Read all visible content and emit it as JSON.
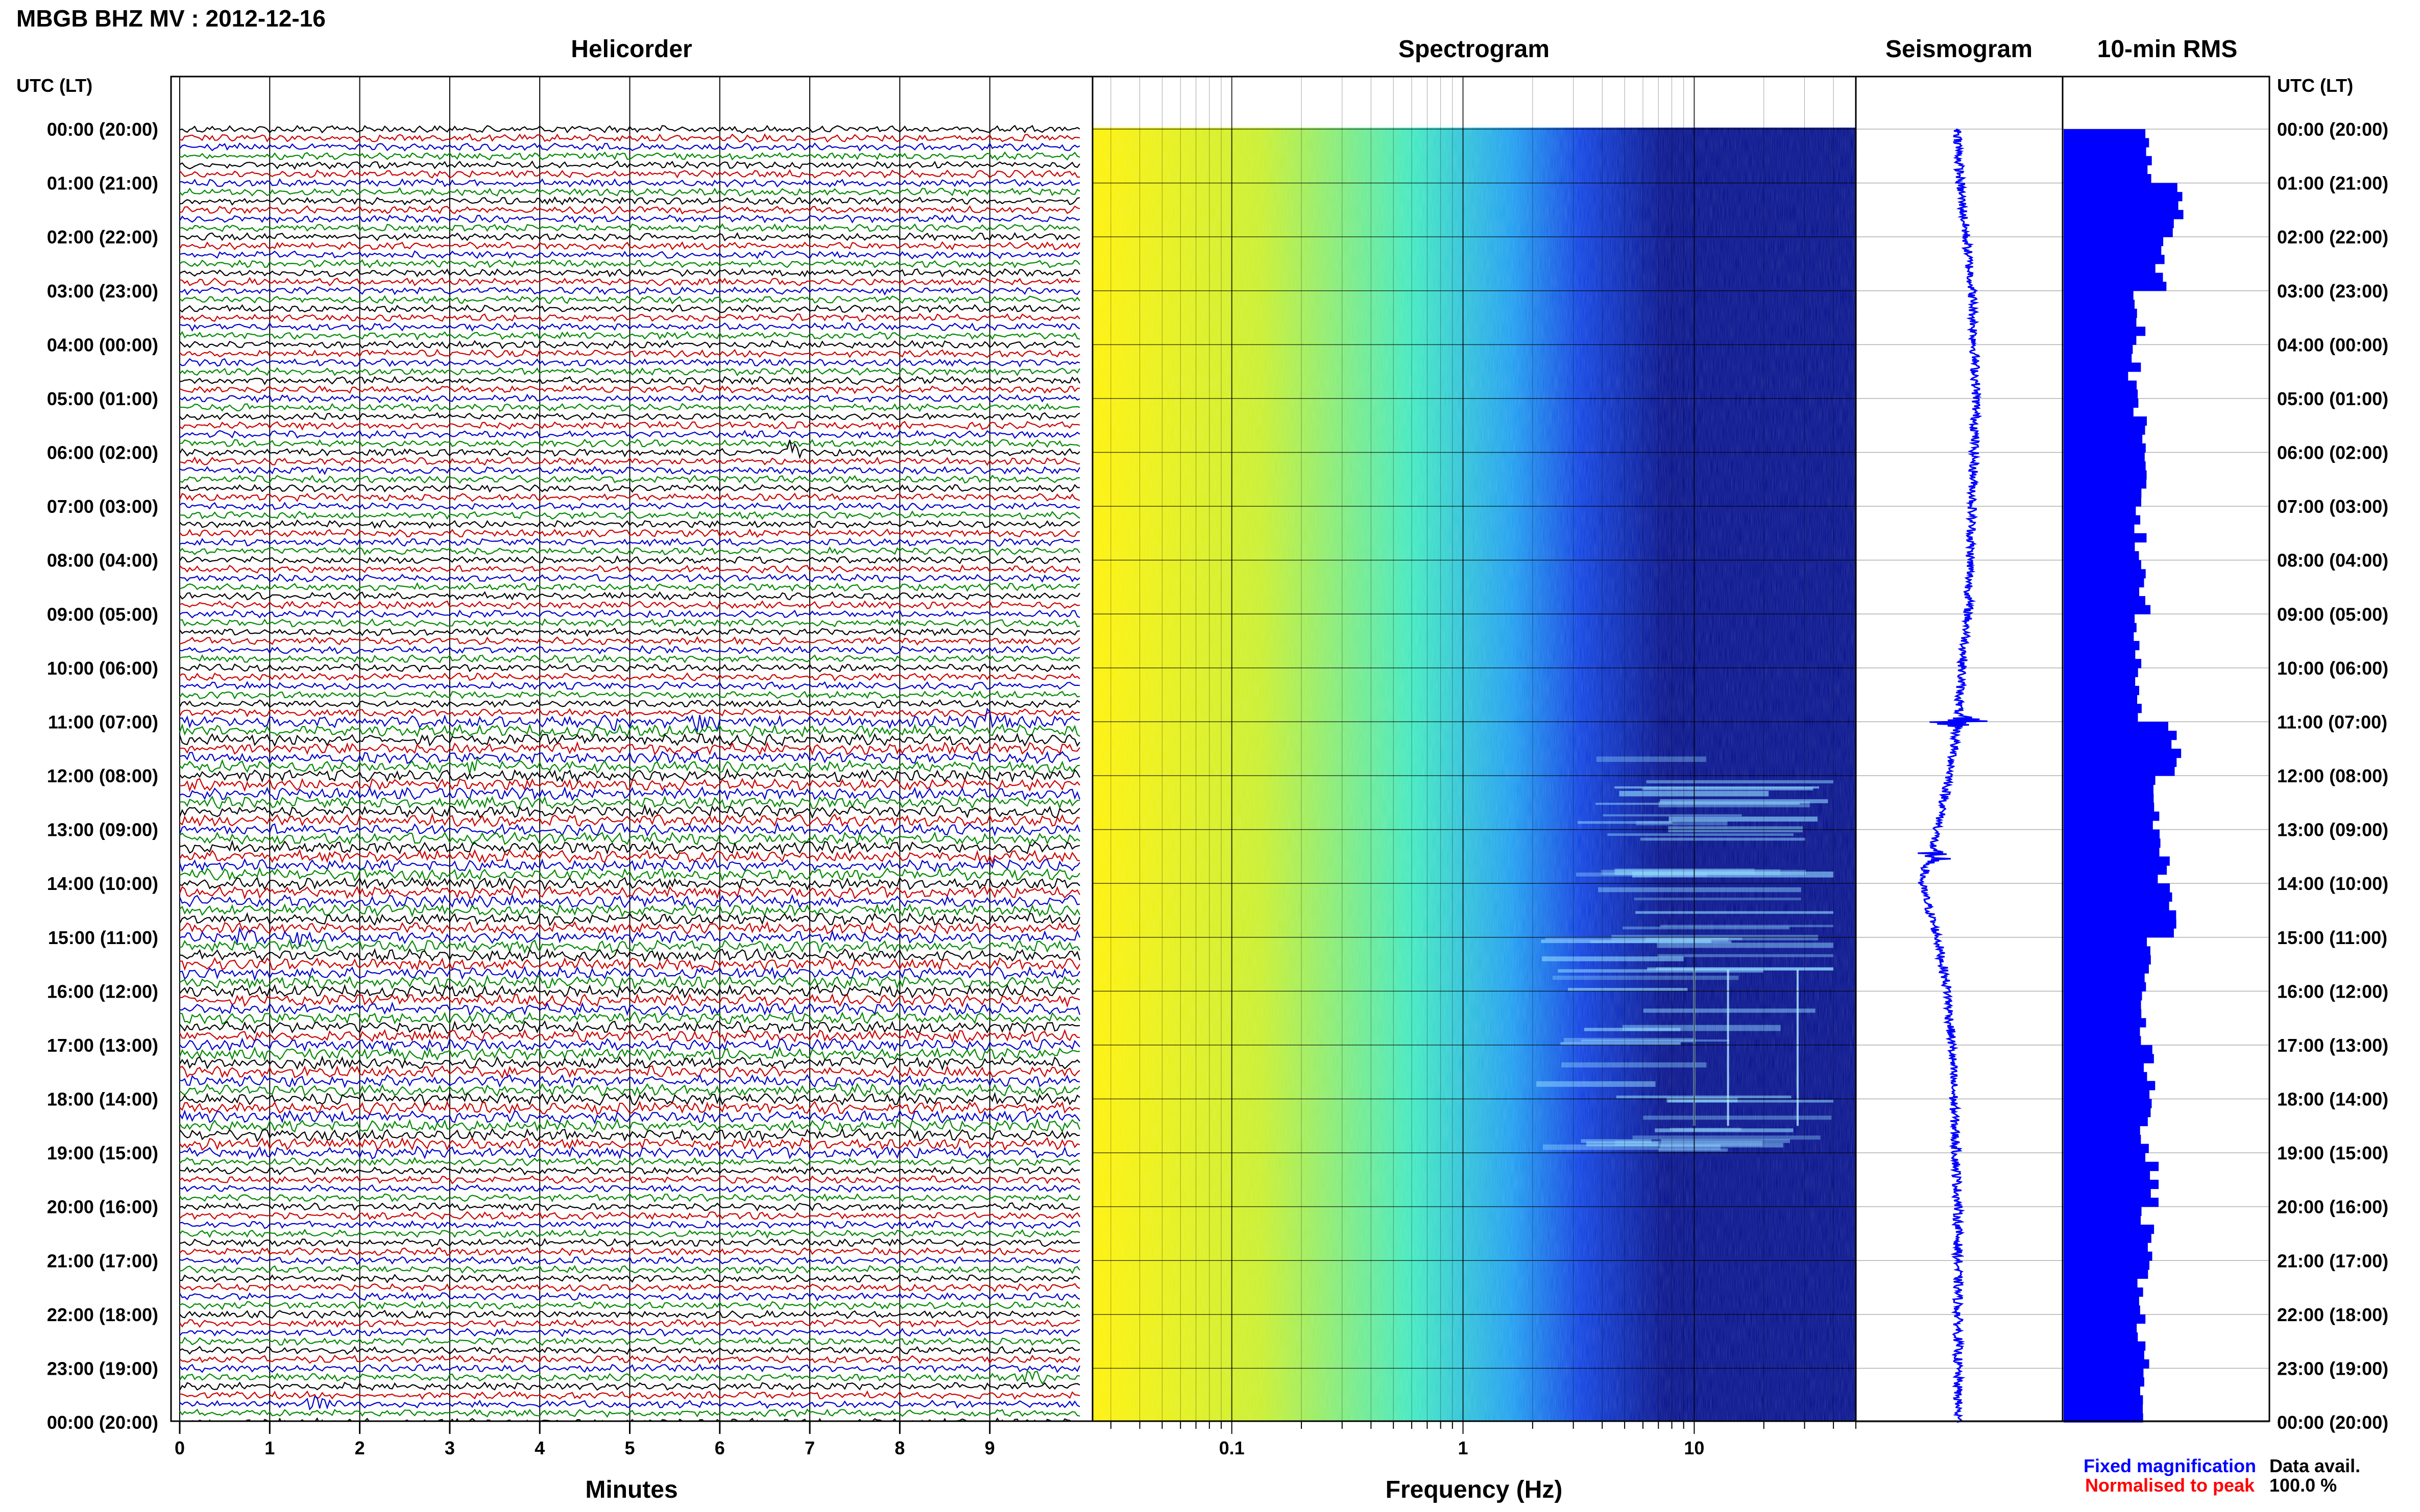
{
  "chart_data": {
    "type": "helicorder-spectrogram",
    "title": "MBGB BHZ MV : 2012-12-16",
    "time_axis_header": "UTC (LT)",
    "time_labels": [
      "00:00 (20:00)",
      "01:00 (21:00)",
      "02:00 (22:00)",
      "03:00 (23:00)",
      "04:00 (00:00)",
      "05:00 (01:00)",
      "06:00 (02:00)",
      "07:00 (03:00)",
      "08:00 (04:00)",
      "09:00 (05:00)",
      "10:00 (06:00)",
      "11:00 (07:00)",
      "12:00 (08:00)",
      "13:00 (09:00)",
      "14:00 (10:00)",
      "15:00 (11:00)",
      "16:00 (12:00)",
      "17:00 (13:00)",
      "18:00 (14:00)",
      "19:00 (15:00)",
      "20:00 (16:00)",
      "21:00 (17:00)",
      "22:00 (18:00)",
      "23:00 (19:00)",
      "00:00 (20:00)"
    ],
    "traces_per_hour": 6,
    "panels": {
      "helicorder": {
        "title": "Helicorder",
        "xlabel": "Minutes",
        "xticks": [
          0,
          1,
          2,
          3,
          4,
          5,
          6,
          7,
          8,
          9
        ],
        "xlim": [
          0,
          10
        ],
        "trace_colors": [
          "#000000",
          "#cc0000",
          "#0000cc",
          "#008800"
        ],
        "events": [
          {
            "hour": 6.0,
            "minute": 6.8,
            "color": "#000000"
          },
          {
            "hour": 11.0,
            "minute": 9.0,
            "color": "#0000cc"
          },
          {
            "hour": 11.0,
            "minute": 4.8,
            "color": "#008800"
          },
          {
            "hour": 11.0,
            "minute": 5.8,
            "color": "#008800"
          },
          {
            "hour": 11.83,
            "minute": 3.3,
            "color": "#008800"
          },
          {
            "hour": 13.5,
            "minute": 9.0,
            "color": "#cc0000"
          },
          {
            "hour": 15.0,
            "minute": 0.8,
            "color": "#008800"
          },
          {
            "hour": 15.0,
            "minute": 1.3,
            "color": "#008800"
          },
          {
            "hour": 23.17,
            "minute": 9.5,
            "color": "#008800"
          },
          {
            "hour": 23.67,
            "minute": 1.5,
            "color": "#0000cc"
          }
        ]
      },
      "spectrogram": {
        "title": "Spectrogram",
        "xlabel": "Frequency (Hz)",
        "xscale": "log",
        "xlim": [
          0.025,
          50
        ],
        "xticks": [
          0.1,
          1,
          10
        ],
        "xtick_labels": [
          "0.1",
          "1",
          "10"
        ],
        "colormap": [
          "#fff100",
          "#c8ef28",
          "#3ce8c0",
          "#1a9cf0",
          "#0a3ee0",
          "#000c8a"
        ],
        "active_period_hours": [
          11,
          19
        ],
        "spectral_lines_hz": [
          10,
          14,
          28
        ]
      },
      "seismogram": {
        "title": "Seismogram",
        "color": "#0000ff",
        "baseline_drift": [
          [
            0,
            0.0
          ],
          [
            1,
            0.05
          ],
          [
            2,
            0.2
          ],
          [
            3,
            0.35
          ],
          [
            4,
            0.4
          ],
          [
            5,
            0.45
          ],
          [
            6,
            0.4
          ],
          [
            7,
            0.35
          ],
          [
            8,
            0.3
          ],
          [
            9,
            0.25
          ],
          [
            10,
            0.1
          ],
          [
            11,
            0.0
          ],
          [
            12,
            -0.2
          ],
          [
            13,
            -0.5
          ],
          [
            14,
            -0.9
          ],
          [
            15,
            -0.5
          ],
          [
            16,
            -0.25
          ],
          [
            17,
            -0.15
          ],
          [
            18,
            -0.1
          ],
          [
            19,
            -0.05
          ],
          [
            20,
            0.0
          ],
          [
            21,
            0.0
          ],
          [
            22,
            0.0
          ],
          [
            23,
            0.0
          ],
          [
            24,
            0.0
          ]
        ],
        "spike_hours": [
          11.0,
          13.5
        ]
      },
      "rms": {
        "title": "10-min RMS",
        "color": "#0000ff",
        "values_by_hour": [
          0.72,
          0.95,
          0.78,
          0.62,
          0.58,
          0.62,
          0.64,
          0.62,
          0.66,
          0.6,
          0.64,
          0.9,
          0.76,
          0.82,
          0.88,
          0.7,
          0.66,
          0.7,
          0.66,
          0.72,
          0.68,
          0.66,
          0.64,
          0.66
        ]
      }
    },
    "legend": {
      "fixed_magnification": {
        "label": "Fixed magnification",
        "color": "#0000ff"
      },
      "normalised_to_peak": {
        "label": "Normalised to peak",
        "color": "#ff0000"
      }
    },
    "availability": {
      "label": "Data avail.",
      "value": "100.0 %"
    }
  }
}
